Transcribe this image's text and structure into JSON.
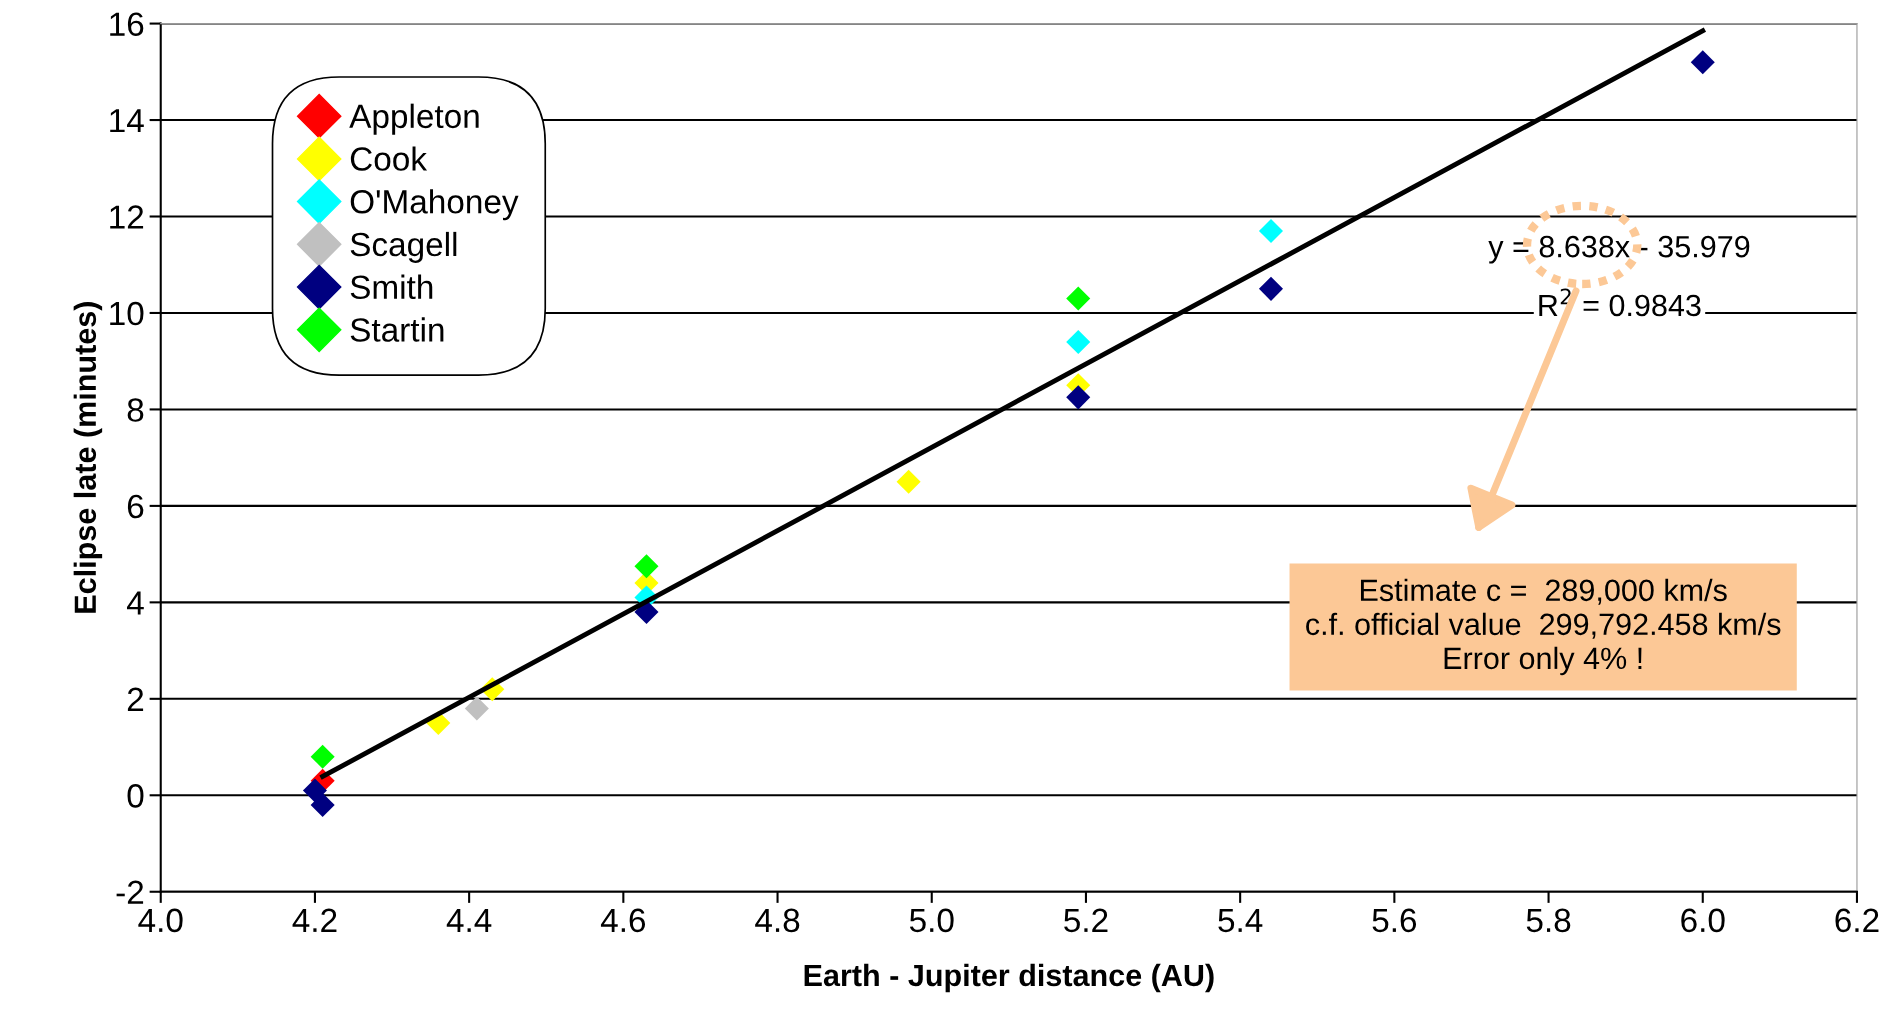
{
  "chart_data": {
    "type": "scatter",
    "xlabel": "Earth - Jupiter distance (AU)",
    "ylabel": "Eclipse late (minutes)",
    "xlim": [
      4.0,
      6.2
    ],
    "xticks": [
      {
        "value": 4.0,
        "label": "4.0"
      },
      {
        "value": 4.2,
        "label": "4.2"
      },
      {
        "value": 4.4,
        "label": "4.4"
      },
      {
        "value": 4.6,
        "label": "4.6"
      },
      {
        "value": 4.8,
        "label": "4.8"
      },
      {
        "value": 5.0,
        "label": "5.0"
      },
      {
        "value": 5.2,
        "label": "5.2"
      },
      {
        "value": 5.4,
        "label": "5.4"
      },
      {
        "value": 5.6,
        "label": "5.6"
      },
      {
        "value": 5.8,
        "label": "5.8"
      },
      {
        "value": 6.0,
        "label": "6.0"
      },
      {
        "value": 6.2,
        "label": "6.2"
      }
    ],
    "ylim": [
      -2,
      16
    ],
    "yticks": [
      -2,
      0,
      2,
      4,
      6,
      8,
      10,
      12,
      14,
      16
    ],
    "grid": "y",
    "legend": "top left",
    "marker": "diamond",
    "series": [
      {
        "name": "Appleton",
        "color": "#ff0000",
        "x": [
          4.21
        ],
        "values": [
          0.3
        ]
      },
      {
        "name": "Cook",
        "color": "#ffff00",
        "x": [
          4.36,
          4.43,
          4.63,
          4.97,
          5.19
        ],
        "values": [
          1.5,
          2.2,
          4.4,
          6.5,
          8.5
        ]
      },
      {
        "name": "O'Mahoney",
        "color": "#00ffff",
        "x": [
          4.63,
          5.19,
          5.44
        ],
        "values": [
          4.1,
          9.4,
          11.7
        ]
      },
      {
        "name": "Scagell",
        "color": "#c0c0c0",
        "x": [
          4.41
        ],
        "values": [
          1.8
        ]
      },
      {
        "name": "Smith",
        "color": "#000080",
        "x": [
          4.2,
          4.21,
          4.63,
          5.19,
          5.44,
          6.0
        ],
        "values": [
          0.1,
          -0.2,
          3.8,
          8.25,
          10.5,
          15.2
        ]
      },
      {
        "name": "Startin",
        "color": "#00ff00",
        "x": [
          4.21,
          4.63,
          5.19
        ],
        "values": [
          0.8,
          4.75,
          10.3
        ]
      },
      {
        "type": "line",
        "marker": "none",
        "color": "#000000",
        "x": [
          4.21,
          6.0
        ],
        "values": [
          0.39,
          15.85
        ]
      }
    ],
    "annotations": [
      "y = 8.638x - 35.979",
      "R$^{2}$ = 0.9843",
      "Estimate c =  289,000 km/s\nc.f. official value  299,792.458 km/s\nError only 4% !"
    ]
  }
}
